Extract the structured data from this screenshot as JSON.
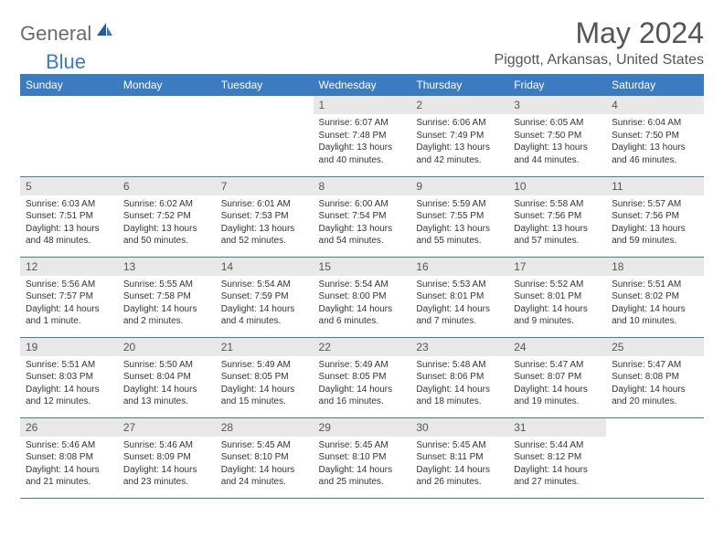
{
  "logo": {
    "general": "General",
    "blue": "Blue"
  },
  "title": "May 2024",
  "location": "Piggott, Arkansas, United States",
  "columns": [
    "Sunday",
    "Monday",
    "Tuesday",
    "Wednesday",
    "Thursday",
    "Friday",
    "Saturday"
  ],
  "colors": {
    "header_bg": "#3b7bbf",
    "header_text": "#ffffff",
    "daynum_bg": "#e8e8e8",
    "border": "#3b7bbf"
  },
  "weeks": [
    [
      null,
      null,
      null,
      {
        "n": "1",
        "sr": "Sunrise: 6:07 AM",
        "ss": "Sunset: 7:48 PM",
        "d1": "Daylight: 13 hours",
        "d2": "and 40 minutes."
      },
      {
        "n": "2",
        "sr": "Sunrise: 6:06 AM",
        "ss": "Sunset: 7:49 PM",
        "d1": "Daylight: 13 hours",
        "d2": "and 42 minutes."
      },
      {
        "n": "3",
        "sr": "Sunrise: 6:05 AM",
        "ss": "Sunset: 7:50 PM",
        "d1": "Daylight: 13 hours",
        "d2": "and 44 minutes."
      },
      {
        "n": "4",
        "sr": "Sunrise: 6:04 AM",
        "ss": "Sunset: 7:50 PM",
        "d1": "Daylight: 13 hours",
        "d2": "and 46 minutes."
      }
    ],
    [
      {
        "n": "5",
        "sr": "Sunrise: 6:03 AM",
        "ss": "Sunset: 7:51 PM",
        "d1": "Daylight: 13 hours",
        "d2": "and 48 minutes."
      },
      {
        "n": "6",
        "sr": "Sunrise: 6:02 AM",
        "ss": "Sunset: 7:52 PM",
        "d1": "Daylight: 13 hours",
        "d2": "and 50 minutes."
      },
      {
        "n": "7",
        "sr": "Sunrise: 6:01 AM",
        "ss": "Sunset: 7:53 PM",
        "d1": "Daylight: 13 hours",
        "d2": "and 52 minutes."
      },
      {
        "n": "8",
        "sr": "Sunrise: 6:00 AM",
        "ss": "Sunset: 7:54 PM",
        "d1": "Daylight: 13 hours",
        "d2": "and 54 minutes."
      },
      {
        "n": "9",
        "sr": "Sunrise: 5:59 AM",
        "ss": "Sunset: 7:55 PM",
        "d1": "Daylight: 13 hours",
        "d2": "and 55 minutes."
      },
      {
        "n": "10",
        "sr": "Sunrise: 5:58 AM",
        "ss": "Sunset: 7:56 PM",
        "d1": "Daylight: 13 hours",
        "d2": "and 57 minutes."
      },
      {
        "n": "11",
        "sr": "Sunrise: 5:57 AM",
        "ss": "Sunset: 7:56 PM",
        "d1": "Daylight: 13 hours",
        "d2": "and 59 minutes."
      }
    ],
    [
      {
        "n": "12",
        "sr": "Sunrise: 5:56 AM",
        "ss": "Sunset: 7:57 PM",
        "d1": "Daylight: 14 hours",
        "d2": "and 1 minute."
      },
      {
        "n": "13",
        "sr": "Sunrise: 5:55 AM",
        "ss": "Sunset: 7:58 PM",
        "d1": "Daylight: 14 hours",
        "d2": "and 2 minutes."
      },
      {
        "n": "14",
        "sr": "Sunrise: 5:54 AM",
        "ss": "Sunset: 7:59 PM",
        "d1": "Daylight: 14 hours",
        "d2": "and 4 minutes."
      },
      {
        "n": "15",
        "sr": "Sunrise: 5:54 AM",
        "ss": "Sunset: 8:00 PM",
        "d1": "Daylight: 14 hours",
        "d2": "and 6 minutes."
      },
      {
        "n": "16",
        "sr": "Sunrise: 5:53 AM",
        "ss": "Sunset: 8:01 PM",
        "d1": "Daylight: 14 hours",
        "d2": "and 7 minutes."
      },
      {
        "n": "17",
        "sr": "Sunrise: 5:52 AM",
        "ss": "Sunset: 8:01 PM",
        "d1": "Daylight: 14 hours",
        "d2": "and 9 minutes."
      },
      {
        "n": "18",
        "sr": "Sunrise: 5:51 AM",
        "ss": "Sunset: 8:02 PM",
        "d1": "Daylight: 14 hours",
        "d2": "and 10 minutes."
      }
    ],
    [
      {
        "n": "19",
        "sr": "Sunrise: 5:51 AM",
        "ss": "Sunset: 8:03 PM",
        "d1": "Daylight: 14 hours",
        "d2": "and 12 minutes."
      },
      {
        "n": "20",
        "sr": "Sunrise: 5:50 AM",
        "ss": "Sunset: 8:04 PM",
        "d1": "Daylight: 14 hours",
        "d2": "and 13 minutes."
      },
      {
        "n": "21",
        "sr": "Sunrise: 5:49 AM",
        "ss": "Sunset: 8:05 PM",
        "d1": "Daylight: 14 hours",
        "d2": "and 15 minutes."
      },
      {
        "n": "22",
        "sr": "Sunrise: 5:49 AM",
        "ss": "Sunset: 8:05 PM",
        "d1": "Daylight: 14 hours",
        "d2": "and 16 minutes."
      },
      {
        "n": "23",
        "sr": "Sunrise: 5:48 AM",
        "ss": "Sunset: 8:06 PM",
        "d1": "Daylight: 14 hours",
        "d2": "and 18 minutes."
      },
      {
        "n": "24",
        "sr": "Sunrise: 5:47 AM",
        "ss": "Sunset: 8:07 PM",
        "d1": "Daylight: 14 hours",
        "d2": "and 19 minutes."
      },
      {
        "n": "25",
        "sr": "Sunrise: 5:47 AM",
        "ss": "Sunset: 8:08 PM",
        "d1": "Daylight: 14 hours",
        "d2": "and 20 minutes."
      }
    ],
    [
      {
        "n": "26",
        "sr": "Sunrise: 5:46 AM",
        "ss": "Sunset: 8:08 PM",
        "d1": "Daylight: 14 hours",
        "d2": "and 21 minutes."
      },
      {
        "n": "27",
        "sr": "Sunrise: 5:46 AM",
        "ss": "Sunset: 8:09 PM",
        "d1": "Daylight: 14 hours",
        "d2": "and 23 minutes."
      },
      {
        "n": "28",
        "sr": "Sunrise: 5:45 AM",
        "ss": "Sunset: 8:10 PM",
        "d1": "Daylight: 14 hours",
        "d2": "and 24 minutes."
      },
      {
        "n": "29",
        "sr": "Sunrise: 5:45 AM",
        "ss": "Sunset: 8:10 PM",
        "d1": "Daylight: 14 hours",
        "d2": "and 25 minutes."
      },
      {
        "n": "30",
        "sr": "Sunrise: 5:45 AM",
        "ss": "Sunset: 8:11 PM",
        "d1": "Daylight: 14 hours",
        "d2": "and 26 minutes."
      },
      {
        "n": "31",
        "sr": "Sunrise: 5:44 AM",
        "ss": "Sunset: 8:12 PM",
        "d1": "Daylight: 14 hours",
        "d2": "and 27 minutes."
      },
      null
    ]
  ]
}
